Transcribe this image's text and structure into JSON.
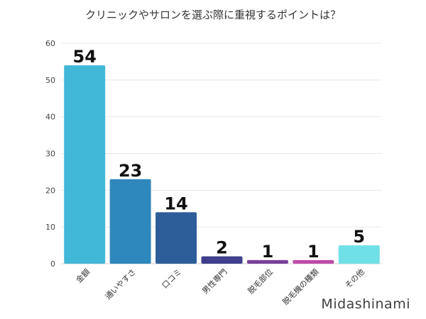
{
  "chart_data": {
    "type": "bar",
    "title": "クリニックやサロンを選ぶ際に重視するポイントは？",
    "categories": [
      "金額",
      "通いやすさ",
      "口コミ",
      "男性専門",
      "脱毛部位",
      "脱毛機の種類",
      "その他"
    ],
    "values": [
      54,
      23,
      14,
      2,
      1,
      1,
      5
    ],
    "colors": [
      "#42b8d8",
      "#2f88bd",
      "#2e5e99",
      "#3f3f8d",
      "#7b3f9a",
      "#c04aa9",
      "#6fe0e6"
    ],
    "ylim": [
      0,
      60
    ],
    "yticks": [
      0,
      10,
      20,
      30,
      40,
      50,
      60
    ],
    "grid": true,
    "xlabel": "",
    "ylabel": ""
  },
  "brand": "Midashinami"
}
